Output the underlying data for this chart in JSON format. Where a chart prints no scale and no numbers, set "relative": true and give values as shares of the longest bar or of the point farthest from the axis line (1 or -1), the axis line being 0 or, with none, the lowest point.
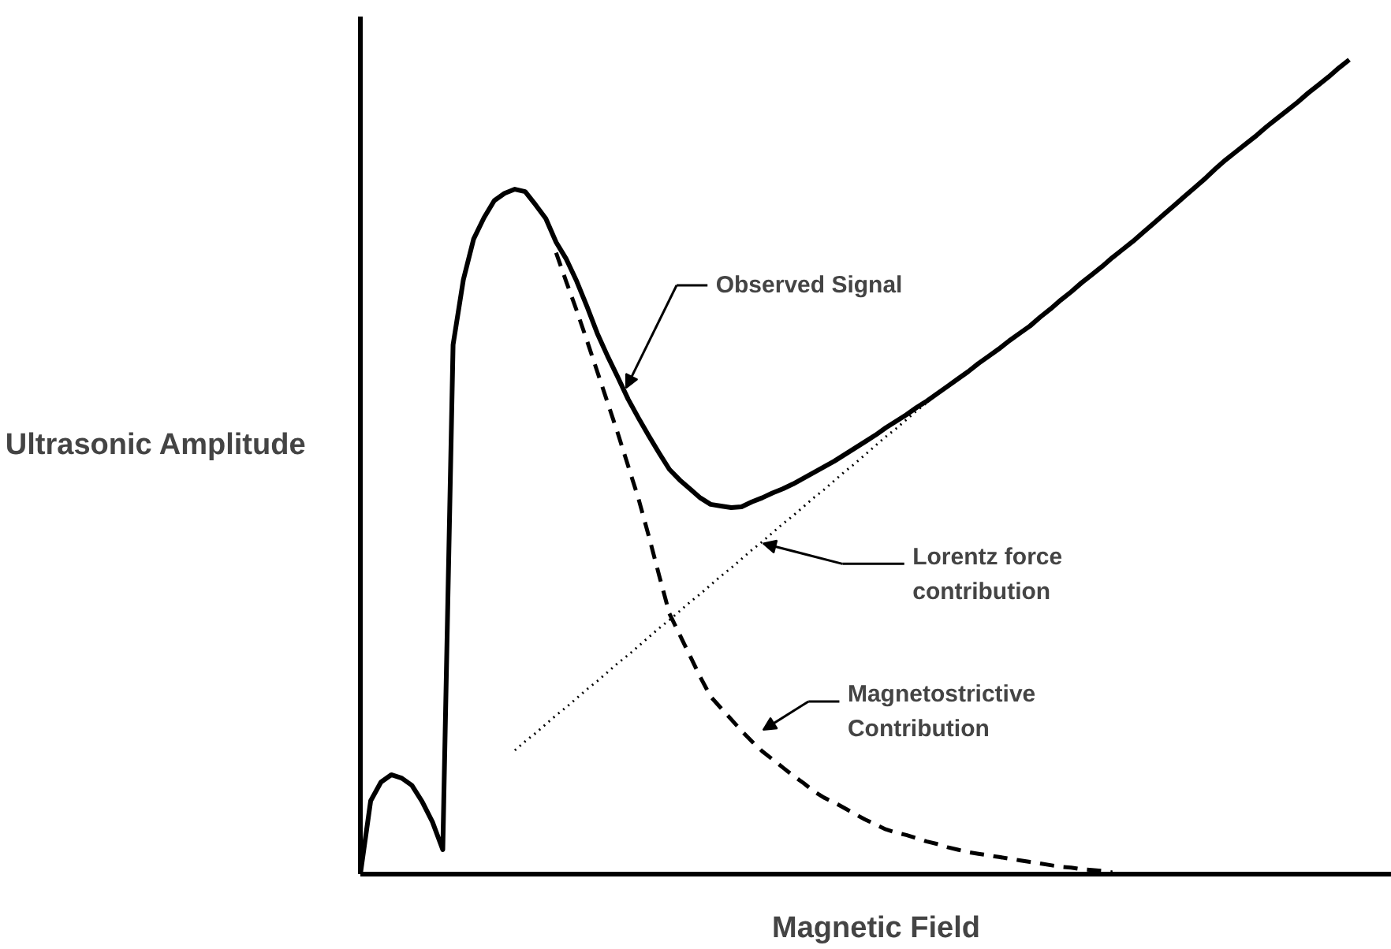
{
  "chart_data": {
    "type": "line",
    "relative": true,
    "xlabel": "Magnetic Field",
    "ylabel": "Ultrasonic Amplitude",
    "grid": false,
    "marker": "none",
    "categories": [
      null,
      null,
      null,
      null,
      null,
      null,
      null,
      null,
      null,
      null,
      null,
      null,
      null,
      null,
      null,
      null,
      null,
      null,
      null,
      null,
      null,
      null,
      null,
      null,
      null,
      null,
      null,
      null,
      null,
      null,
      null,
      null,
      null,
      null,
      null,
      null,
      null,
      null,
      null,
      null,
      null,
      null,
      null,
      null,
      null,
      null,
      null,
      null,
      null,
      null,
      null,
      null,
      null,
      null,
      null,
      null,
      null,
      null,
      null,
      null,
      null,
      null,
      null,
      null,
      null,
      null,
      null,
      null,
      null,
      null,
      null,
      null,
      null,
      null,
      null,
      null,
      null,
      null,
      null,
      null,
      null,
      null,
      null,
      null,
      null,
      null,
      null,
      null,
      null,
      null,
      null,
      null,
      null,
      null,
      null,
      null,
      null
    ],
    "series": [
      {
        "color": "#000000",
        "line_style": "solid",
        "values": [
          0,
          0.09,
          0.113,
          0.122,
          0.118,
          0.109,
          0.089,
          0.064,
          0.03,
          0.65,
          0.73,
          0.78,
          0.806,
          0.827,
          0.836,
          0.841,
          0.838,
          0.822,
          0.805,
          0.776,
          0.755,
          0.728,
          0.697,
          0.664,
          0.636,
          0.61,
          0.583,
          0.56,
          0.538,
          0.517,
          0.497,
          0.484,
          0.473,
          0.462,
          0.454,
          0.452,
          0.45,
          0.451,
          0.457,
          0.462,
          0.468,
          0.473,
          0.479,
          0.486,
          0.493,
          0.5,
          0.507,
          0.515,
          0.523,
          0.531,
          0.539,
          0.548,
          0.556,
          0.564,
          0.573,
          0.581,
          0.59,
          0.599,
          0.608,
          0.617,
          0.627,
          0.636,
          0.645,
          0.655,
          0.664,
          0.673,
          0.684,
          0.694,
          0.705,
          0.715,
          0.726,
          0.736,
          0.746,
          0.757,
          0.767,
          0.777,
          0.788,
          0.799,
          0.81,
          0.821,
          0.832,
          0.843,
          0.854,
          0.866,
          0.877,
          0.887,
          0.897,
          0.907,
          0.918,
          0.928,
          0.938,
          0.948,
          0.959,
          0.969,
          0.979,
          0.99,
          1.0
        ]
      },
      {
        "color": "#000000",
        "line_style": "dotted",
        "values": [
          null,
          null,
          null,
          null,
          null,
          null,
          null,
          null,
          null,
          null,
          null,
          null,
          null,
          null,
          null,
          0.152,
          0.163,
          0.173,
          0.184,
          0.195,
          0.205,
          0.216,
          0.227,
          0.237,
          0.248,
          0.259,
          0.269,
          0.28,
          0.291,
          0.302,
          0.312,
          0.323,
          0.334,
          0.344,
          0.355,
          0.366,
          0.376,
          0.387,
          0.398,
          0.408,
          0.419,
          0.43,
          0.44,
          0.451,
          0.462,
          0.472,
          0.483,
          0.494,
          0.504,
          0.515,
          0.526,
          0.537,
          0.547,
          0.558,
          0.569,
          0.579,
          null,
          null,
          null,
          null,
          null,
          null,
          null,
          null,
          null,
          null,
          null,
          null,
          null,
          null,
          null,
          null,
          null,
          null,
          null,
          null,
          null,
          null,
          null,
          null,
          null,
          null,
          null,
          null,
          null,
          null,
          null,
          null,
          null,
          null,
          null,
          null,
          null,
          null,
          null,
          null,
          null
        ]
      },
      {
        "color": "#000000",
        "line_style": "dashed",
        "values": [
          null,
          null,
          null,
          null,
          null,
          null,
          null,
          null,
          null,
          null,
          null,
          null,
          null,
          null,
          null,
          null,
          null,
          null,
          null,
          0.763,
          0.727,
          0.692,
          0.655,
          0.617,
          0.579,
          0.541,
          0.501,
          0.461,
          0.415,
          0.367,
          0.32,
          0.294,
          0.268,
          0.242,
          0.218,
          0.204,
          0.19,
          0.176,
          0.163,
          0.151,
          0.141,
          0.131,
          0.121,
          0.112,
          0.102,
          0.094,
          0.088,
          0.081,
          0.074,
          0.067,
          0.061,
          0.055,
          0.051,
          0.048,
          0.044,
          0.04,
          0.037,
          0.033,
          0.03,
          0.027,
          0.025,
          0.023,
          0.021,
          0.019,
          0.017,
          0.015,
          0.013,
          0.011,
          0.009,
          0.008,
          0.006,
          0.005,
          0.004,
          0.002,
          null,
          null,
          null,
          null,
          null,
          null,
          null,
          null,
          null,
          null,
          null,
          null,
          null,
          null,
          null,
          null,
          null,
          null,
          null,
          null,
          null,
          null,
          null
        ]
      }
    ],
    "annotations": [
      "Observed Signal",
      "Lorentz force\ncontribution",
      "Magnetostrictive\nContribution"
    ]
  }
}
